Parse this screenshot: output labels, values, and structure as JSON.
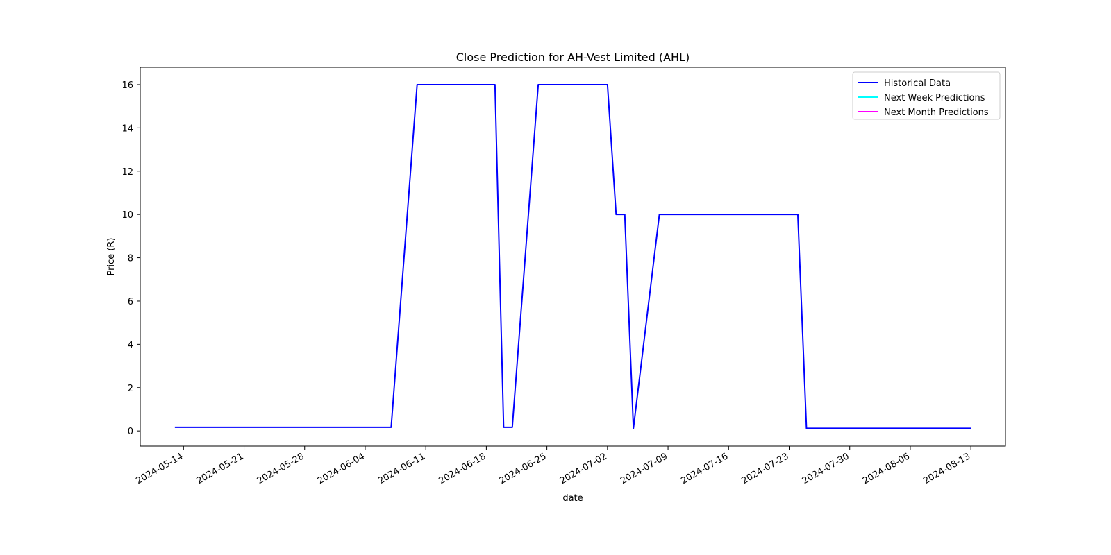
{
  "chart_data": {
    "type": "line",
    "title": "Close Prediction for AH-Vest Limited (AHL)",
    "xlabel": "date",
    "ylabel": "Price (R)",
    "xlim": [
      "2024-05-09",
      "2024-08-17"
    ],
    "ylim": [
      -0.7,
      16.8
    ],
    "x_ticks": [
      "2024-05-14",
      "2024-05-21",
      "2024-05-28",
      "2024-06-04",
      "2024-06-11",
      "2024-06-18",
      "2024-06-25",
      "2024-07-02",
      "2024-07-09",
      "2024-07-16",
      "2024-07-23",
      "2024-07-30",
      "2024-08-06",
      "2024-08-13"
    ],
    "y_ticks": [
      0,
      2,
      4,
      6,
      8,
      10,
      12,
      14,
      16
    ],
    "grid": false,
    "legend_position": "upper-right",
    "series": [
      {
        "name": "Historical Data",
        "color": "#0000ff",
        "points": [
          [
            "2024-05-13",
            0.17
          ],
          [
            "2024-06-07",
            0.17
          ],
          [
            "2024-06-10",
            16
          ],
          [
            "2024-06-19",
            16
          ],
          [
            "2024-06-20",
            0.17
          ],
          [
            "2024-06-21",
            0.17
          ],
          [
            "2024-06-24",
            16
          ],
          [
            "2024-07-02",
            16
          ],
          [
            "2024-07-03",
            10
          ],
          [
            "2024-07-04",
            10
          ],
          [
            "2024-07-05",
            0.12
          ],
          [
            "2024-07-08",
            10
          ],
          [
            "2024-07-24",
            10
          ],
          [
            "2024-07-25",
            0.12
          ],
          [
            "2024-08-13",
            0.12
          ]
        ]
      },
      {
        "name": "Next Week Predictions",
        "color": "#00ffff",
        "points": []
      },
      {
        "name": "Next Month Predictions",
        "color": "#ff00ff",
        "points": []
      }
    ]
  }
}
